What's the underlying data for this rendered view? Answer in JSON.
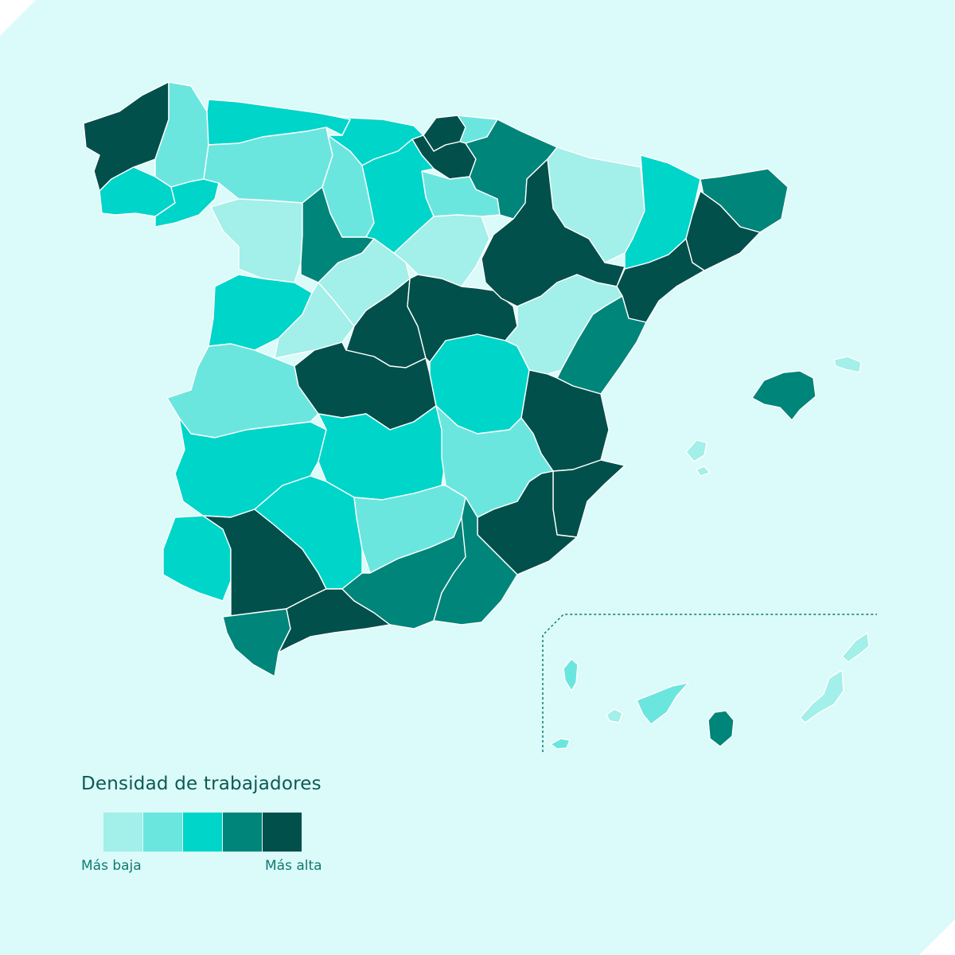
{
  "palette": {
    "background": "#dbfafa",
    "canary_frame": "#0f7a70",
    "levels": [
      "#a3efe9",
      "#6be6df",
      "#00d5ca",
      "#00857a",
      "#02504b"
    ]
  },
  "legend": {
    "title": "Densidad de trabajadores",
    "low_label": "Más baja",
    "high_label": "Más alta"
  },
  "regions": [
    {
      "id": "a-coruna",
      "level": 4
    },
    {
      "id": "pontevedra",
      "level": 2
    },
    {
      "id": "lugo",
      "level": 1
    },
    {
      "id": "ourense",
      "level": 2
    },
    {
      "id": "asturias",
      "level": 2
    },
    {
      "id": "cantabria",
      "level": 2
    },
    {
      "id": "bizkaia",
      "level": 4
    },
    {
      "id": "gipuzkoa",
      "level": 1
    },
    {
      "id": "araba",
      "level": 4
    },
    {
      "id": "navarra",
      "level": 3
    },
    {
      "id": "la-rioja",
      "level": 1
    },
    {
      "id": "leon",
      "level": 1
    },
    {
      "id": "palencia",
      "level": 1
    },
    {
      "id": "burgos",
      "level": 2
    },
    {
      "id": "zamora",
      "level": 0
    },
    {
      "id": "valladolid",
      "level": 3
    },
    {
      "id": "soria",
      "level": 0
    },
    {
      "id": "salamanca",
      "level": 2
    },
    {
      "id": "segovia",
      "level": 0
    },
    {
      "id": "avila",
      "level": 0
    },
    {
      "id": "madrid",
      "level": 4
    },
    {
      "id": "guadalajara",
      "level": 4
    },
    {
      "id": "huesca",
      "level": 0
    },
    {
      "id": "zaragoza",
      "level": 4
    },
    {
      "id": "teruel",
      "level": 0
    },
    {
      "id": "lleida",
      "level": 2
    },
    {
      "id": "girona",
      "level": 3
    },
    {
      "id": "barcelona",
      "level": 4
    },
    {
      "id": "tarragona",
      "level": 4
    },
    {
      "id": "castellon",
      "level": 3
    },
    {
      "id": "valencia",
      "level": 4
    },
    {
      "id": "alicante",
      "level": 4
    },
    {
      "id": "murcia",
      "level": 4
    },
    {
      "id": "caceres",
      "level": 1
    },
    {
      "id": "badajoz",
      "level": 2
    },
    {
      "id": "toledo",
      "level": 4
    },
    {
      "id": "cuenca",
      "level": 2
    },
    {
      "id": "ciudad-real",
      "level": 2
    },
    {
      "id": "albacete",
      "level": 1
    },
    {
      "id": "huelva",
      "level": 2
    },
    {
      "id": "sevilla",
      "level": 4
    },
    {
      "id": "cordoba",
      "level": 2
    },
    {
      "id": "jaen",
      "level": 1
    },
    {
      "id": "cadiz",
      "level": 3
    },
    {
      "id": "malaga",
      "level": 4
    },
    {
      "id": "granada",
      "level": 3
    },
    {
      "id": "almeria",
      "level": 3
    },
    {
      "id": "mallorca",
      "level": 3
    },
    {
      "id": "menorca",
      "level": 0
    },
    {
      "id": "ibiza",
      "level": 0
    },
    {
      "id": "formentera",
      "level": 0
    },
    {
      "id": "lanzarote",
      "level": 0
    },
    {
      "id": "fuerteventura",
      "level": 0
    },
    {
      "id": "gran-canaria",
      "level": 3
    },
    {
      "id": "tenerife",
      "level": 1
    },
    {
      "id": "la-gomera",
      "level": 0
    },
    {
      "id": "la-palma",
      "level": 1
    },
    {
      "id": "el-hierro",
      "level": 1
    }
  ]
}
